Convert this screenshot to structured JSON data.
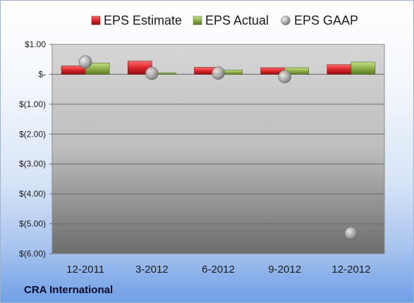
{
  "company": "CRA International",
  "chart_data": {
    "type": "bar",
    "categories": [
      "12-2011",
      "3-2012",
      "6-2012",
      "9-2012",
      "12-2012"
    ],
    "series": [
      {
        "name": "EPS Estimate",
        "kind": "bar",
        "color": "#d9262b",
        "values": [
          0.28,
          0.44,
          0.23,
          0.22,
          0.32
        ]
      },
      {
        "name": "EPS Actual",
        "kind": "bar",
        "color": "#8fb04a",
        "values": [
          0.38,
          0.05,
          0.14,
          0.22,
          0.41
        ]
      },
      {
        "name": "EPS GAAP",
        "kind": "marker",
        "color": "#a9a9a9",
        "values": [
          0.41,
          0.03,
          0.04,
          -0.08,
          -5.32
        ]
      }
    ],
    "yticks": [
      "$1.00",
      "$-",
      "$(1.00)",
      "$(2.00)",
      "$(3.00)",
      "$(4.00)",
      "$(5.00)",
      "$(6.00)"
    ],
    "ytick_values": [
      1,
      0,
      -1,
      -2,
      -3,
      -4,
      -5,
      -6
    ],
    "ylim": [
      -6,
      1
    ],
    "grid": true,
    "legend_position": "top"
  }
}
